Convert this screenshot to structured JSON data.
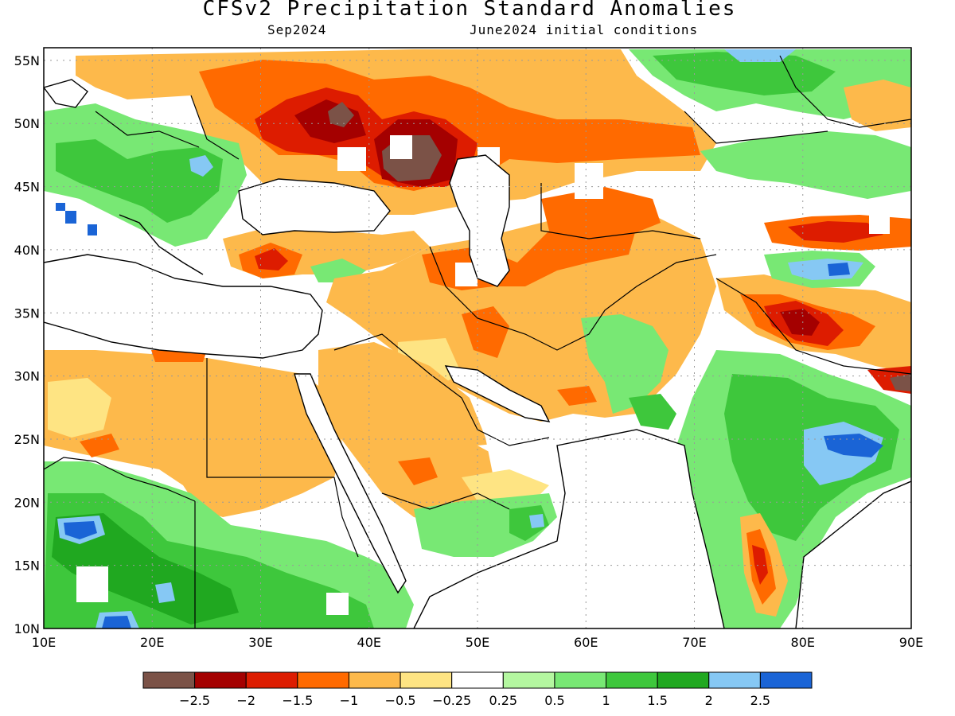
{
  "title": "CFSv2 Precipitation Standard Anomalies",
  "subtitle_left": "Sep2024",
  "subtitle_right": "June2024 initial conditions",
  "map": {
    "lon_range": [
      10,
      90
    ],
    "lat_range": [
      10,
      56
    ],
    "lat_ticks": [
      "55N",
      "50N",
      "45N",
      "40N",
      "35N",
      "30N",
      "25N",
      "20N",
      "15N",
      "10N"
    ],
    "lon_ticks": [
      "10E",
      "20E",
      "30E",
      "40E",
      "50E",
      "60E",
      "70E",
      "80E",
      "90E"
    ],
    "colors": {
      "ocean": "#ffffff",
      "coast": "#000000",
      "grid": "#999999"
    }
  },
  "colorbar": {
    "colors": [
      "#7b5247",
      "#a40000",
      "#dd1c00",
      "#ff6a00",
      "#fdb94b",
      "#fee483",
      "#ffffff",
      "#b4f7a0",
      "#78e874",
      "#3ec73c",
      "#20a820",
      "#86c8f4",
      "#1a64d6"
    ],
    "labels": [
      "−2.5",
      "−2",
      "−1.5",
      "−1",
      "−0.5",
      "−0.25",
      "0.25",
      "0.5",
      "1",
      "1.5",
      "2",
      "2.5"
    ]
  }
}
